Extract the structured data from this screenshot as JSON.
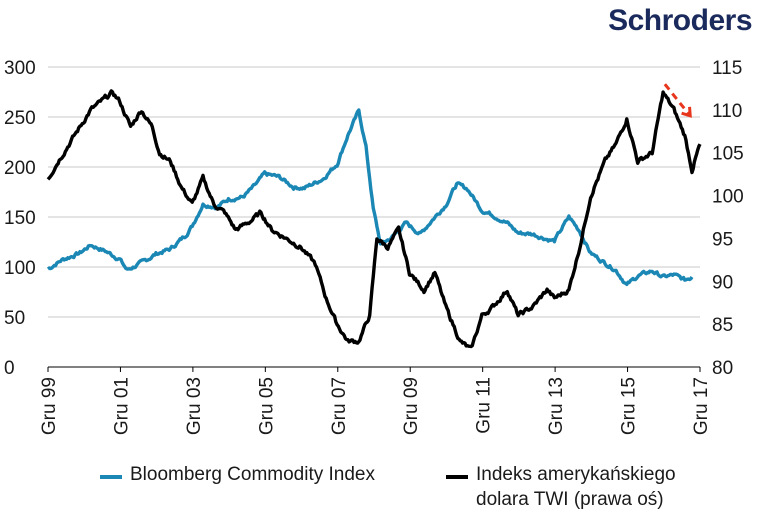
{
  "brand": {
    "logo_text": "Schroders"
  },
  "chart_data": {
    "type": "line",
    "title": "",
    "x_tick_labels": [
      "Gru 99",
      "Gru 01",
      "Gru 03",
      "Gru 05",
      "Gru 07",
      "Gru 09",
      "Gru 11",
      "Gru 13",
      "Gru 15",
      "Gru 17"
    ],
    "x_range": [
      1999.92,
      2017.92
    ],
    "left_axis": {
      "ticks": [
        0,
        50,
        100,
        150,
        200,
        250,
        300
      ],
      "range": [
        0,
        300
      ]
    },
    "right_axis": {
      "ticks": [
        80,
        85,
        90,
        95,
        100,
        105,
        110,
        115
      ],
      "range": [
        80,
        115
      ]
    },
    "grid": true,
    "series": [
      {
        "name": "Bloomberg Commodity Index",
        "axis": "left",
        "color": "#1a87b5",
        "points": [
          [
            1999.92,
            98
          ],
          [
            2000.3,
            107
          ],
          [
            2000.8,
            114
          ],
          [
            2001.1,
            122
          ],
          [
            2001.5,
            116
          ],
          [
            2001.9,
            108
          ],
          [
            2002.1,
            97
          ],
          [
            2002.5,
            104
          ],
          [
            2002.9,
            113
          ],
          [
            2003.3,
            118
          ],
          [
            2003.7,
            131
          ],
          [
            2003.9,
            141
          ],
          [
            2004.2,
            163
          ],
          [
            2004.6,
            160
          ],
          [
            2004.9,
            168
          ],
          [
            2005.3,
            170
          ],
          [
            2005.6,
            180
          ],
          [
            2005.9,
            193
          ],
          [
            2006.3,
            190
          ],
          [
            2006.7,
            180
          ],
          [
            2007.0,
            179
          ],
          [
            2007.5,
            188
          ],
          [
            2007.9,
            203
          ],
          [
            2008.2,
            232
          ],
          [
            2008.5,
            256
          ],
          [
            2008.7,
            220
          ],
          [
            2008.9,
            158
          ],
          [
            2009.1,
            123
          ],
          [
            2009.4,
            129
          ],
          [
            2009.8,
            144
          ],
          [
            2010.2,
            133
          ],
          [
            2010.5,
            146
          ],
          [
            2010.9,
            162
          ],
          [
            2011.2,
            183
          ],
          [
            2011.5,
            178
          ],
          [
            2011.9,
            157
          ],
          [
            2012.2,
            152
          ],
          [
            2012.6,
            144
          ],
          [
            2012.9,
            134
          ],
          [
            2013.3,
            133
          ],
          [
            2013.7,
            128
          ],
          [
            2013.9,
            126
          ],
          [
            2014.3,
            150
          ],
          [
            2014.6,
            136
          ],
          [
            2014.9,
            114
          ],
          [
            2015.3,
            104
          ],
          [
            2015.6,
            97
          ],
          [
            2015.9,
            82
          ],
          [
            2016.2,
            91
          ],
          [
            2016.6,
            96
          ],
          [
            2016.9,
            90
          ],
          [
            2017.2,
            92
          ],
          [
            2017.5,
            87
          ],
          [
            2017.7,
            90
          ]
        ]
      },
      {
        "name": "Indeks amerykańskiego dolara TWI (prawa oś)",
        "axis": "right",
        "color": "#000000",
        "points": [
          [
            1999.92,
            102
          ],
          [
            2000.2,
            104
          ],
          [
            2000.5,
            106
          ],
          [
            2000.8,
            108
          ],
          [
            2001.1,
            110
          ],
          [
            2001.4,
            111
          ],
          [
            2001.7,
            112
          ],
          [
            2001.9,
            111
          ],
          [
            2002.2,
            108
          ],
          [
            2002.5,
            110
          ],
          [
            2002.8,
            108
          ],
          [
            2003.0,
            105
          ],
          [
            2003.3,
            104
          ],
          [
            2003.6,
            101
          ],
          [
            2003.9,
            99
          ],
          [
            2004.2,
            102
          ],
          [
            2004.5,
            99
          ],
          [
            2004.8,
            98
          ],
          [
            2005.1,
            96
          ],
          [
            2005.5,
            97
          ],
          [
            2005.8,
            98
          ],
          [
            2006.1,
            96
          ],
          [
            2006.5,
            95
          ],
          [
            2006.9,
            94
          ],
          [
            2007.3,
            92
          ],
          [
            2007.6,
            88
          ],
          [
            2007.9,
            85
          ],
          [
            2008.2,
            83
          ],
          [
            2008.5,
            83
          ],
          [
            2008.8,
            86
          ],
          [
            2009.0,
            95
          ],
          [
            2009.3,
            94
          ],
          [
            2009.6,
            96
          ],
          [
            2009.9,
            91
          ],
          [
            2010.3,
            89
          ],
          [
            2010.6,
            91
          ],
          [
            2010.9,
            87
          ],
          [
            2011.3,
            83
          ],
          [
            2011.6,
            82
          ],
          [
            2011.9,
            86
          ],
          [
            2012.2,
            87
          ],
          [
            2012.6,
            89
          ],
          [
            2012.9,
            86
          ],
          [
            2013.3,
            87
          ],
          [
            2013.7,
            89
          ],
          [
            2013.9,
            88
          ],
          [
            2014.3,
            89
          ],
          [
            2014.6,
            94
          ],
          [
            2014.9,
            100
          ],
          [
            2015.3,
            104
          ],
          [
            2015.6,
            106
          ],
          [
            2015.9,
            109
          ],
          [
            2016.2,
            104
          ],
          [
            2016.6,
            105
          ],
          [
            2016.9,
            112
          ],
          [
            2017.2,
            110
          ],
          [
            2017.5,
            107
          ],
          [
            2017.7,
            103
          ],
          [
            2017.92,
            106
          ]
        ]
      }
    ],
    "annotations": [
      {
        "type": "dashed-arrow",
        "color": "#e8361e",
        "from": [
          2016.95,
          113
        ],
        "to": [
          2017.65,
          109.3
        ]
      }
    ]
  },
  "legend": {
    "items": [
      {
        "label": "Bloomberg Commodity Index",
        "color": "#1a87b5"
      },
      {
        "label_line1": "Indeks amerykańskiego",
        "label_line2": "dolara TWI (prawa oś)",
        "color": "#000000"
      }
    ]
  }
}
